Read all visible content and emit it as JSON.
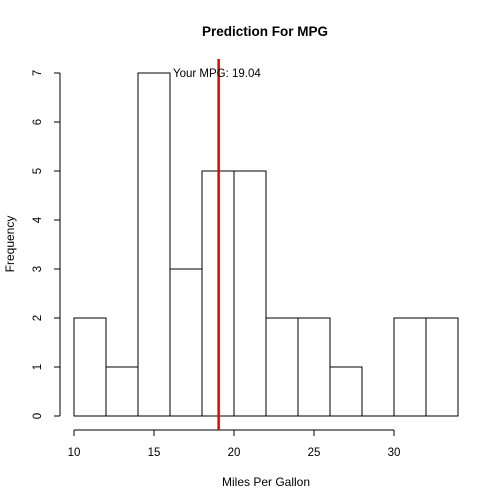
{
  "chart_data": {
    "type": "bar",
    "subtype": "histogram",
    "title": "Prediction For MPG",
    "xlabel": "Miles Per Gallon",
    "ylabel": "Frequency",
    "bin_edges": [
      10,
      12,
      14,
      16,
      18,
      20,
      22,
      24,
      26,
      28,
      30,
      32,
      34
    ],
    "values": [
      2,
      1,
      7,
      3,
      5,
      5,
      2,
      2,
      1,
      0,
      2,
      2
    ],
    "xlim": [
      10,
      34
    ],
    "ylim": [
      0,
      7
    ],
    "xticks": [
      10,
      15,
      20,
      25,
      30
    ],
    "yticks": [
      0,
      1,
      2,
      3,
      4,
      5,
      6,
      7
    ],
    "grid": false,
    "bar_fill": "#ffffff",
    "bar_stroke": "#000000",
    "reference_line": {
      "x": 19.04,
      "color": "#ee0000",
      "label": "Your MPG: 19.04"
    }
  }
}
